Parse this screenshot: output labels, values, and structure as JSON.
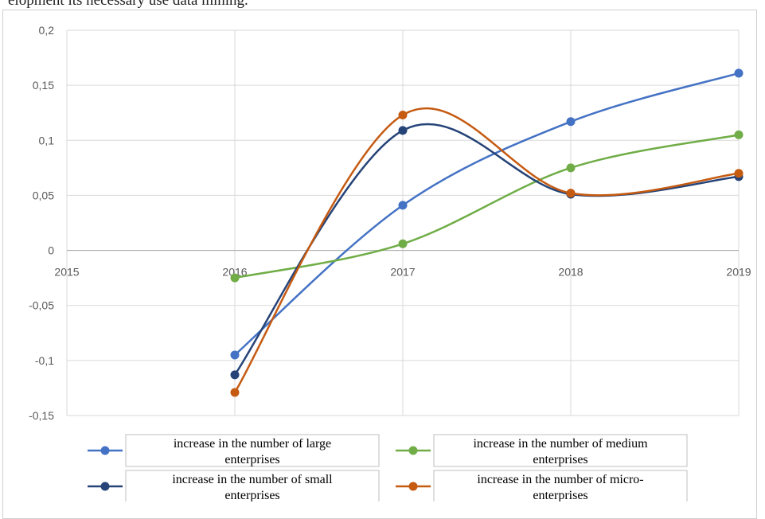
{
  "page": {
    "top_text": "elopment its necessary use data mining."
  },
  "chart_data": {
    "type": "line",
    "title": "",
    "xlabel": "",
    "ylabel": "",
    "x": [
      2015,
      2016,
      2017,
      2018,
      2019
    ],
    "xlim": [
      2015,
      2019
    ],
    "ylim": [
      -0.15,
      0.2
    ],
    "x_tick_labels": [
      "2015",
      "2016",
      "2017",
      "2018",
      "2019"
    ],
    "y_tick_labels": [
      "0,2",
      "0,15",
      "0,1",
      "0,05",
      "0",
      "-0,05",
      "-0,1",
      "-0,15"
    ],
    "y_ticks": [
      0.2,
      0.15,
      0.1,
      0.05,
      0,
      -0.05,
      -0.1,
      -0.15
    ],
    "grid": true,
    "legend_position": "bottom",
    "series": [
      {
        "name": "increase in the number of large enterprises",
        "legend_lines": [
          "increase in the number of large",
          "enterprises"
        ],
        "color": "#4472C4",
        "x": [
          2016,
          2017,
          2018,
          2019
        ],
        "values": [
          -0.095,
          0.041,
          0.117,
          0.161
        ]
      },
      {
        "name": "increase in the number of medium enterprises",
        "legend_lines": [
          "increase in the number of medium",
          "enterprises"
        ],
        "color": "#70AD47",
        "x": [
          2016,
          2017,
          2018,
          2019
        ],
        "values": [
          -0.025,
          0.006,
          0.075,
          0.105
        ]
      },
      {
        "name": "increase in the number of small enterprises",
        "legend_lines": [
          "increase in the number of small",
          "enterprises"
        ],
        "color": "#264478",
        "x": [
          2016,
          2017,
          2018,
          2019
        ],
        "values": [
          -0.113,
          0.109,
          0.051,
          0.067
        ]
      },
      {
        "name": "increase in the number of micro-enterprises",
        "legend_lines": [
          "increase in the number of micro-",
          "enterprises"
        ],
        "color": "#C55A11",
        "x": [
          2016,
          2017,
          2018,
          2019
        ],
        "values": [
          -0.129,
          0.123,
          0.052,
          0.07
        ]
      }
    ]
  }
}
